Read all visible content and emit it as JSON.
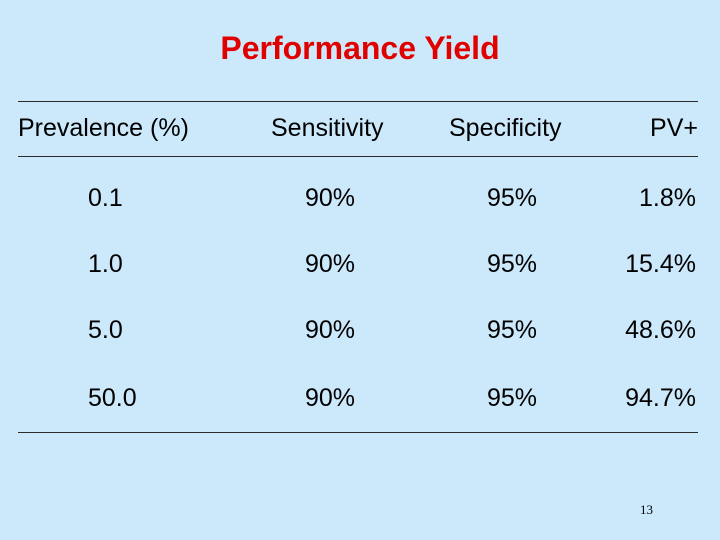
{
  "slide": {
    "title": "Performance Yield",
    "page_number": "13"
  },
  "table": {
    "headers": [
      "Prevalence (%)",
      "Sensitivity",
      "Specificity",
      "PV+"
    ],
    "rows": [
      [
        "0.1",
        "90%",
        "95%",
        "1.8%"
      ],
      [
        "1.0",
        "90%",
        "95%",
        "15.4%"
      ],
      [
        "5.0",
        "90%",
        "95%",
        "48.6%"
      ],
      [
        "50.0",
        "90%",
        "95%",
        "94.7%"
      ]
    ]
  },
  "colors": {
    "background": "#cce9fb",
    "title": "#e00000",
    "text": "#000000"
  }
}
